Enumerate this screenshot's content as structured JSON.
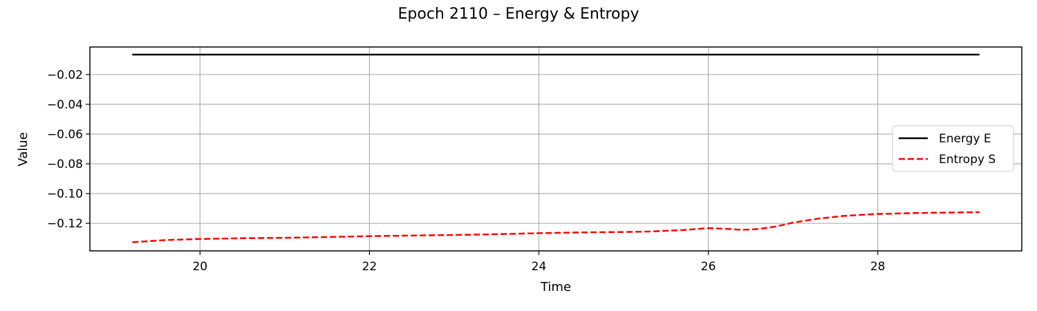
{
  "chart_data": {
    "type": "line",
    "title": "Epoch 2110 – Energy & Entropy",
    "xlabel": "Time",
    "ylabel": "Value",
    "xlim": [
      18.7,
      29.7
    ],
    "ylim": [
      -0.1385,
      -0.0015
    ],
    "xticks": [
      20,
      22,
      24,
      26,
      28
    ],
    "yticks": [
      -0.02,
      -0.04,
      -0.06,
      -0.08,
      -0.1,
      -0.12
    ],
    "xtick_labels": [
      "20",
      "22",
      "24",
      "26",
      "28"
    ],
    "ytick_labels": [
      "−0.02",
      "−0.04",
      "−0.06",
      "−0.08",
      "−0.10",
      "−0.12"
    ],
    "grid": true,
    "legend_position": "center-right",
    "series": [
      {
        "name": "Energy E",
        "color": "#000000",
        "style": "solid",
        "x": [
          19.2,
          20.0,
          21.0,
          22.0,
          23.0,
          24.0,
          25.0,
          26.0,
          27.0,
          28.0,
          29.2
        ],
        "y": [
          -0.0066,
          -0.0066,
          -0.0066,
          -0.0066,
          -0.0066,
          -0.0066,
          -0.0066,
          -0.0066,
          -0.0066,
          -0.0066,
          -0.0066
        ]
      },
      {
        "name": "Entropy S",
        "color": "#ff0000",
        "style": "dashed",
        "x": [
          19.2,
          19.6,
          20.0,
          20.5,
          21.0,
          21.5,
          22.0,
          22.5,
          23.0,
          23.5,
          24.0,
          24.5,
          25.0,
          25.3,
          25.7,
          26.0,
          26.2,
          26.4,
          26.6,
          26.8,
          27.0,
          27.3,
          27.6,
          28.0,
          28.5,
          29.2
        ],
        "y": [
          -0.1327,
          -0.1312,
          -0.1305,
          -0.13,
          -0.1297,
          -0.1292,
          -0.1286,
          -0.1282,
          -0.1278,
          -0.1273,
          -0.1266,
          -0.1261,
          -0.1258,
          -0.1255,
          -0.1245,
          -0.1232,
          -0.1237,
          -0.1244,
          -0.1238,
          -0.1221,
          -0.1195,
          -0.1168,
          -0.115,
          -0.1137,
          -0.113,
          -0.1125
        ]
      }
    ]
  }
}
